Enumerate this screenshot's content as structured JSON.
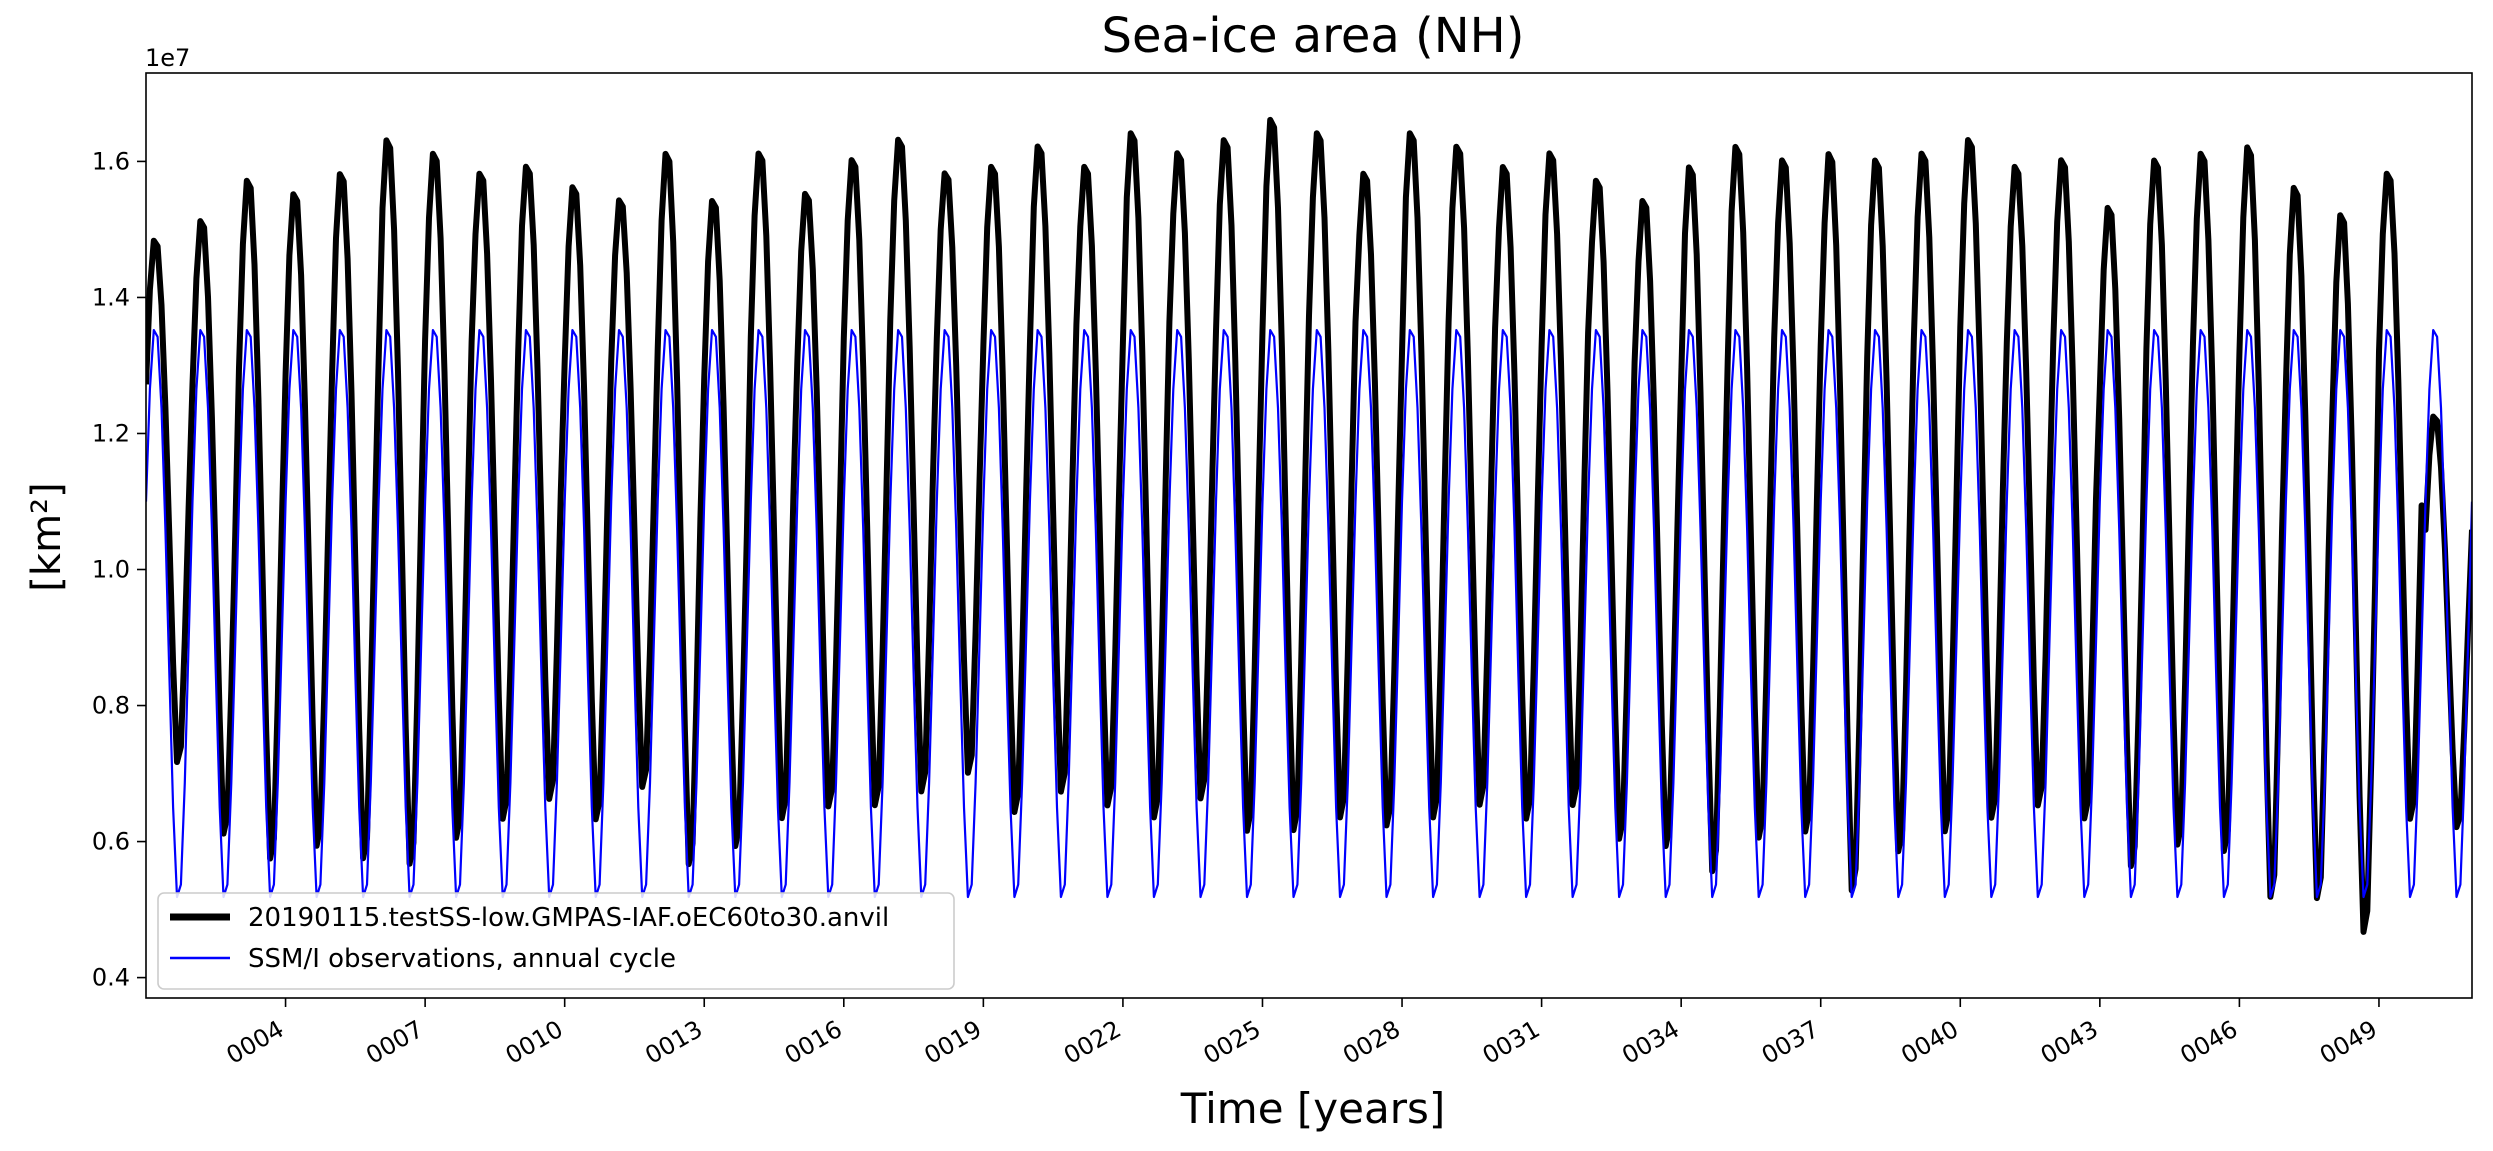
{
  "chart_data": {
    "type": "line",
    "title": "Sea-ice area (NH)",
    "xlabel": "Time [years]",
    "ylabel": "[km²]",
    "y_offset_label": "1e7",
    "ylim": [
      0.37,
      1.73
    ],
    "xlim": [
      1.0,
      51.0
    ],
    "grid": false,
    "legend_position": "lower-left",
    "y_ticks": [
      0.4,
      0.6,
      0.8,
      1.0,
      1.2,
      1.4,
      1.6
    ],
    "y_tick_labels": [
      "0.4",
      "0.6",
      "0.8",
      "1.0",
      "1.2",
      "1.4",
      "1.6"
    ],
    "x_ticks": [
      4,
      7,
      10,
      13,
      16,
      19,
      22,
      25,
      28,
      31,
      34,
      37,
      40,
      43,
      46,
      49
    ],
    "x_tick_labels": [
      "0004",
      "0007",
      "0010",
      "0013",
      "0016",
      "0019",
      "0022",
      "0025",
      "0028",
      "0031",
      "0034",
      "0037",
      "0040",
      "0043",
      "0046",
      "0049"
    ],
    "series": [
      {
        "name": "20190115.testSS-low.GMPAS-IAF.oEC60to30.anvil",
        "color": "#000000",
        "annual_max": [
          1.49,
          1.52,
          1.58,
          1.56,
          1.59,
          1.64,
          1.62,
          1.59,
          1.6,
          1.57,
          1.55,
          1.62,
          1.55,
          1.62,
          1.56,
          1.61,
          1.64,
          1.59,
          1.6,
          1.63,
          1.6,
          1.65,
          1.62,
          1.64,
          1.67,
          1.65,
          1.59,
          1.65,
          1.63,
          1.6,
          1.62,
          1.58,
          1.55,
          1.6,
          1.63,
          1.61,
          1.62,
          1.61,
          1.62,
          1.64,
          1.6,
          1.61,
          1.54,
          1.61,
          1.62,
          1.63,
          1.57,
          1.53,
          1.59,
          1.23
        ],
        "annual_min": [
          0.69,
          0.58,
          0.54,
          0.56,
          0.54,
          0.53,
          0.57,
          0.6,
          0.63,
          0.6,
          0.65,
          0.53,
          0.56,
          0.6,
          0.62,
          0.62,
          0.64,
          0.67,
          0.61,
          0.64,
          0.62,
          0.6,
          0.63,
          0.58,
          0.58,
          0.6,
          0.59,
          0.6,
          0.62,
          0.6,
          0.62,
          0.57,
          0.56,
          0.52,
          0.57,
          0.58,
          0.49,
          0.55,
          0.58,
          0.6,
          0.62,
          0.6,
          0.53,
          0.56,
          0.55,
          0.48,
          0.48,
          0.43,
          0.6,
          0.6
        ]
      },
      {
        "name": "SSM/I observations, annual cycle",
        "color": "#0000ff",
        "annual_max": 1.36,
        "annual_min": 0.5
      }
    ]
  }
}
